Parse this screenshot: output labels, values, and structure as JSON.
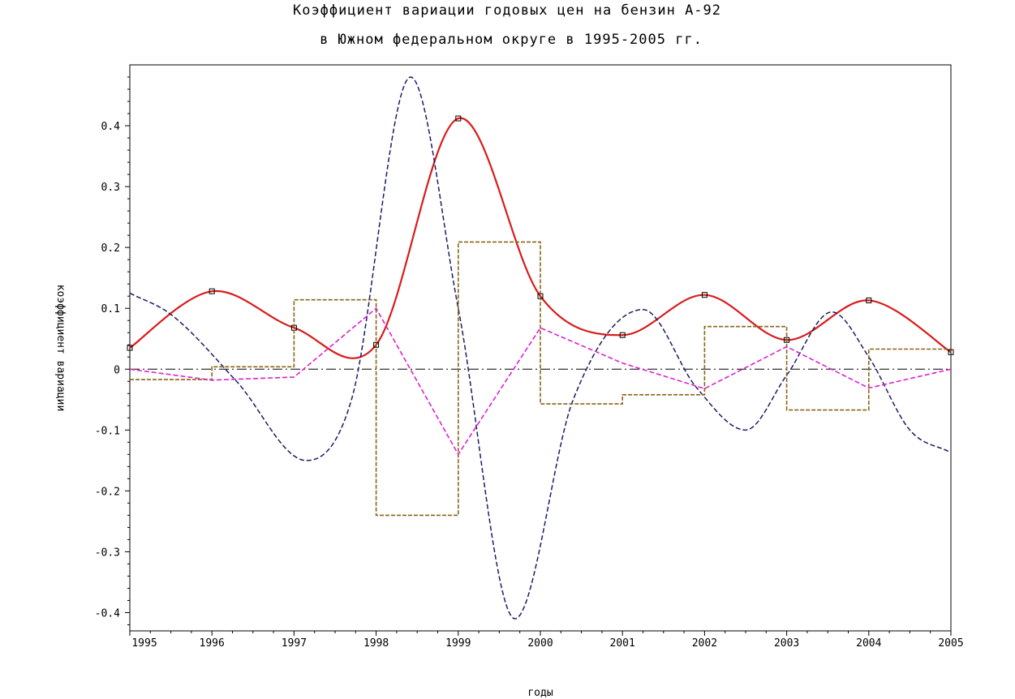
{
  "chart_data": {
    "type": "line",
    "title": "Коэффициент вариации годовых цен на бензин А-92",
    "subtitle": "в Южном федеральном округе в 1995-2005 гг.",
    "xlabel": "годы",
    "ylabel": "коэффициент вариации",
    "xlim": [
      1995,
      2005
    ],
    "ylim": [
      -0.43,
      0.5
    ],
    "x_ticks": [
      "1995",
      "1996",
      "1997",
      "1998",
      "1999",
      "2000",
      "2001",
      "2002",
      "2003",
      "2004",
      "2005"
    ],
    "y_ticks": [
      "-0.4",
      "-0.3",
      "-0.2",
      "-0.1",
      "0",
      "0.1",
      "0.2",
      "0.3",
      "0.4"
    ],
    "y_tick_values": [
      -0.4,
      -0.3,
      -0.2,
      -0.1,
      0,
      0.1,
      0.2,
      0.3,
      0.4
    ],
    "grid": false,
    "zero_line": true,
    "series": [
      {
        "style": "smooth-solid-markers",
        "color": "#d81c1c",
        "x": [
          1995,
          1996,
          1997,
          1998,
          1999,
          2000,
          2001,
          2002,
          2003,
          2004,
          2005
        ],
        "values": [
          0.035,
          0.128,
          0.068,
          0.04,
          0.412,
          0.12,
          0.056,
          0.122,
          0.048,
          0.113,
          0.028
        ]
      },
      {
        "style": "smooth-dashed",
        "color": "#1c1c66",
        "x": [
          1995,
          1995.5,
          1996.3,
          1997.15,
          1997.7,
          1998.42,
          1999.0,
          1999.69,
          2000.4,
          2001.25,
          2001.9,
          2002.5,
          2003.0,
          2003.55,
          2004.0,
          2004.5,
          2005
        ],
        "values": [
          0.125,
          0.09,
          -0.02,
          -0.15,
          -0.05,
          0.48,
          0.1,
          -0.41,
          -0.05,
          0.098,
          -0.03,
          -0.1,
          -0.01,
          0.094,
          0.02,
          -0.1,
          -0.137
        ]
      },
      {
        "style": "step-dashed",
        "color": "#8a6418",
        "x": [
          1995,
          1996,
          1997,
          1998,
          1999,
          2000,
          2001,
          2002,
          2003,
          2004,
          2005
        ],
        "values": [
          -0.017,
          0.004,
          0.114,
          -0.24,
          0.209,
          -0.057,
          -0.042,
          0.07,
          -0.067,
          0.033,
          0.033
        ]
      },
      {
        "style": "linear-dashed",
        "color": "#dd22cc",
        "x": [
          1995,
          1996,
          1997,
          1998,
          1999,
          2000,
          2001,
          2002,
          2003,
          2004,
          2005
        ],
        "values": [
          0.0,
          -0.018,
          -0.013,
          0.1,
          -0.14,
          0.068,
          0.01,
          -0.032,
          0.037,
          -0.031,
          0.0
        ]
      }
    ]
  }
}
